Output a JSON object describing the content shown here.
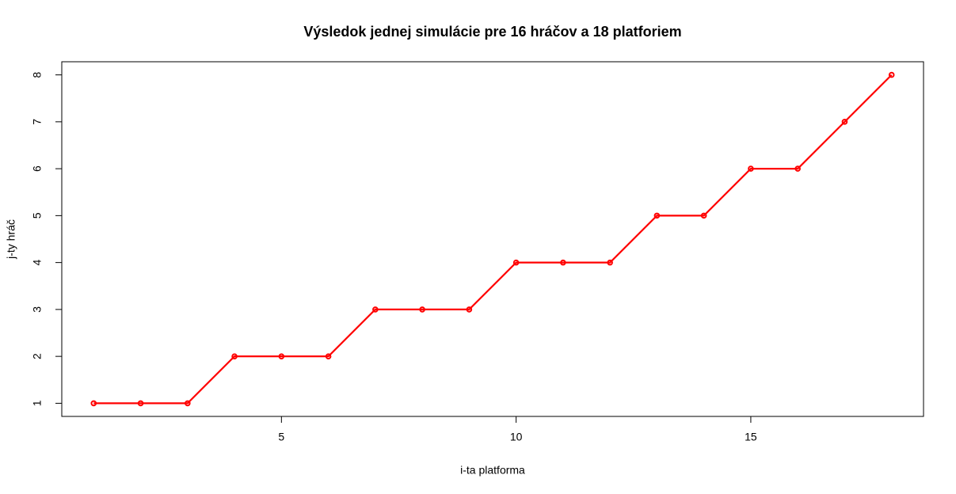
{
  "chart_data": {
    "type": "line",
    "title": "Výsledok jednej simulácie pre 16 hráčov a 18 platforiem",
    "x_label": "i-ta platforma",
    "y_label": "j-ty hráč",
    "x": [
      1,
      2,
      3,
      4,
      5,
      6,
      7,
      8,
      9,
      10,
      11,
      12,
      13,
      14,
      15,
      16,
      17,
      18
    ],
    "values": [
      1,
      1,
      1,
      2,
      2,
      2,
      3,
      3,
      3,
      4,
      4,
      4,
      5,
      5,
      6,
      6,
      7,
      8
    ],
    "color": "#ff0000",
    "xlim": [
      0.32,
      18.68
    ],
    "xticks": [
      5,
      10,
      15
    ],
    "ylim": [
      0.72,
      8.28
    ],
    "yticks": [
      1,
      2,
      3,
      4,
      5,
      6,
      7,
      8
    ]
  }
}
